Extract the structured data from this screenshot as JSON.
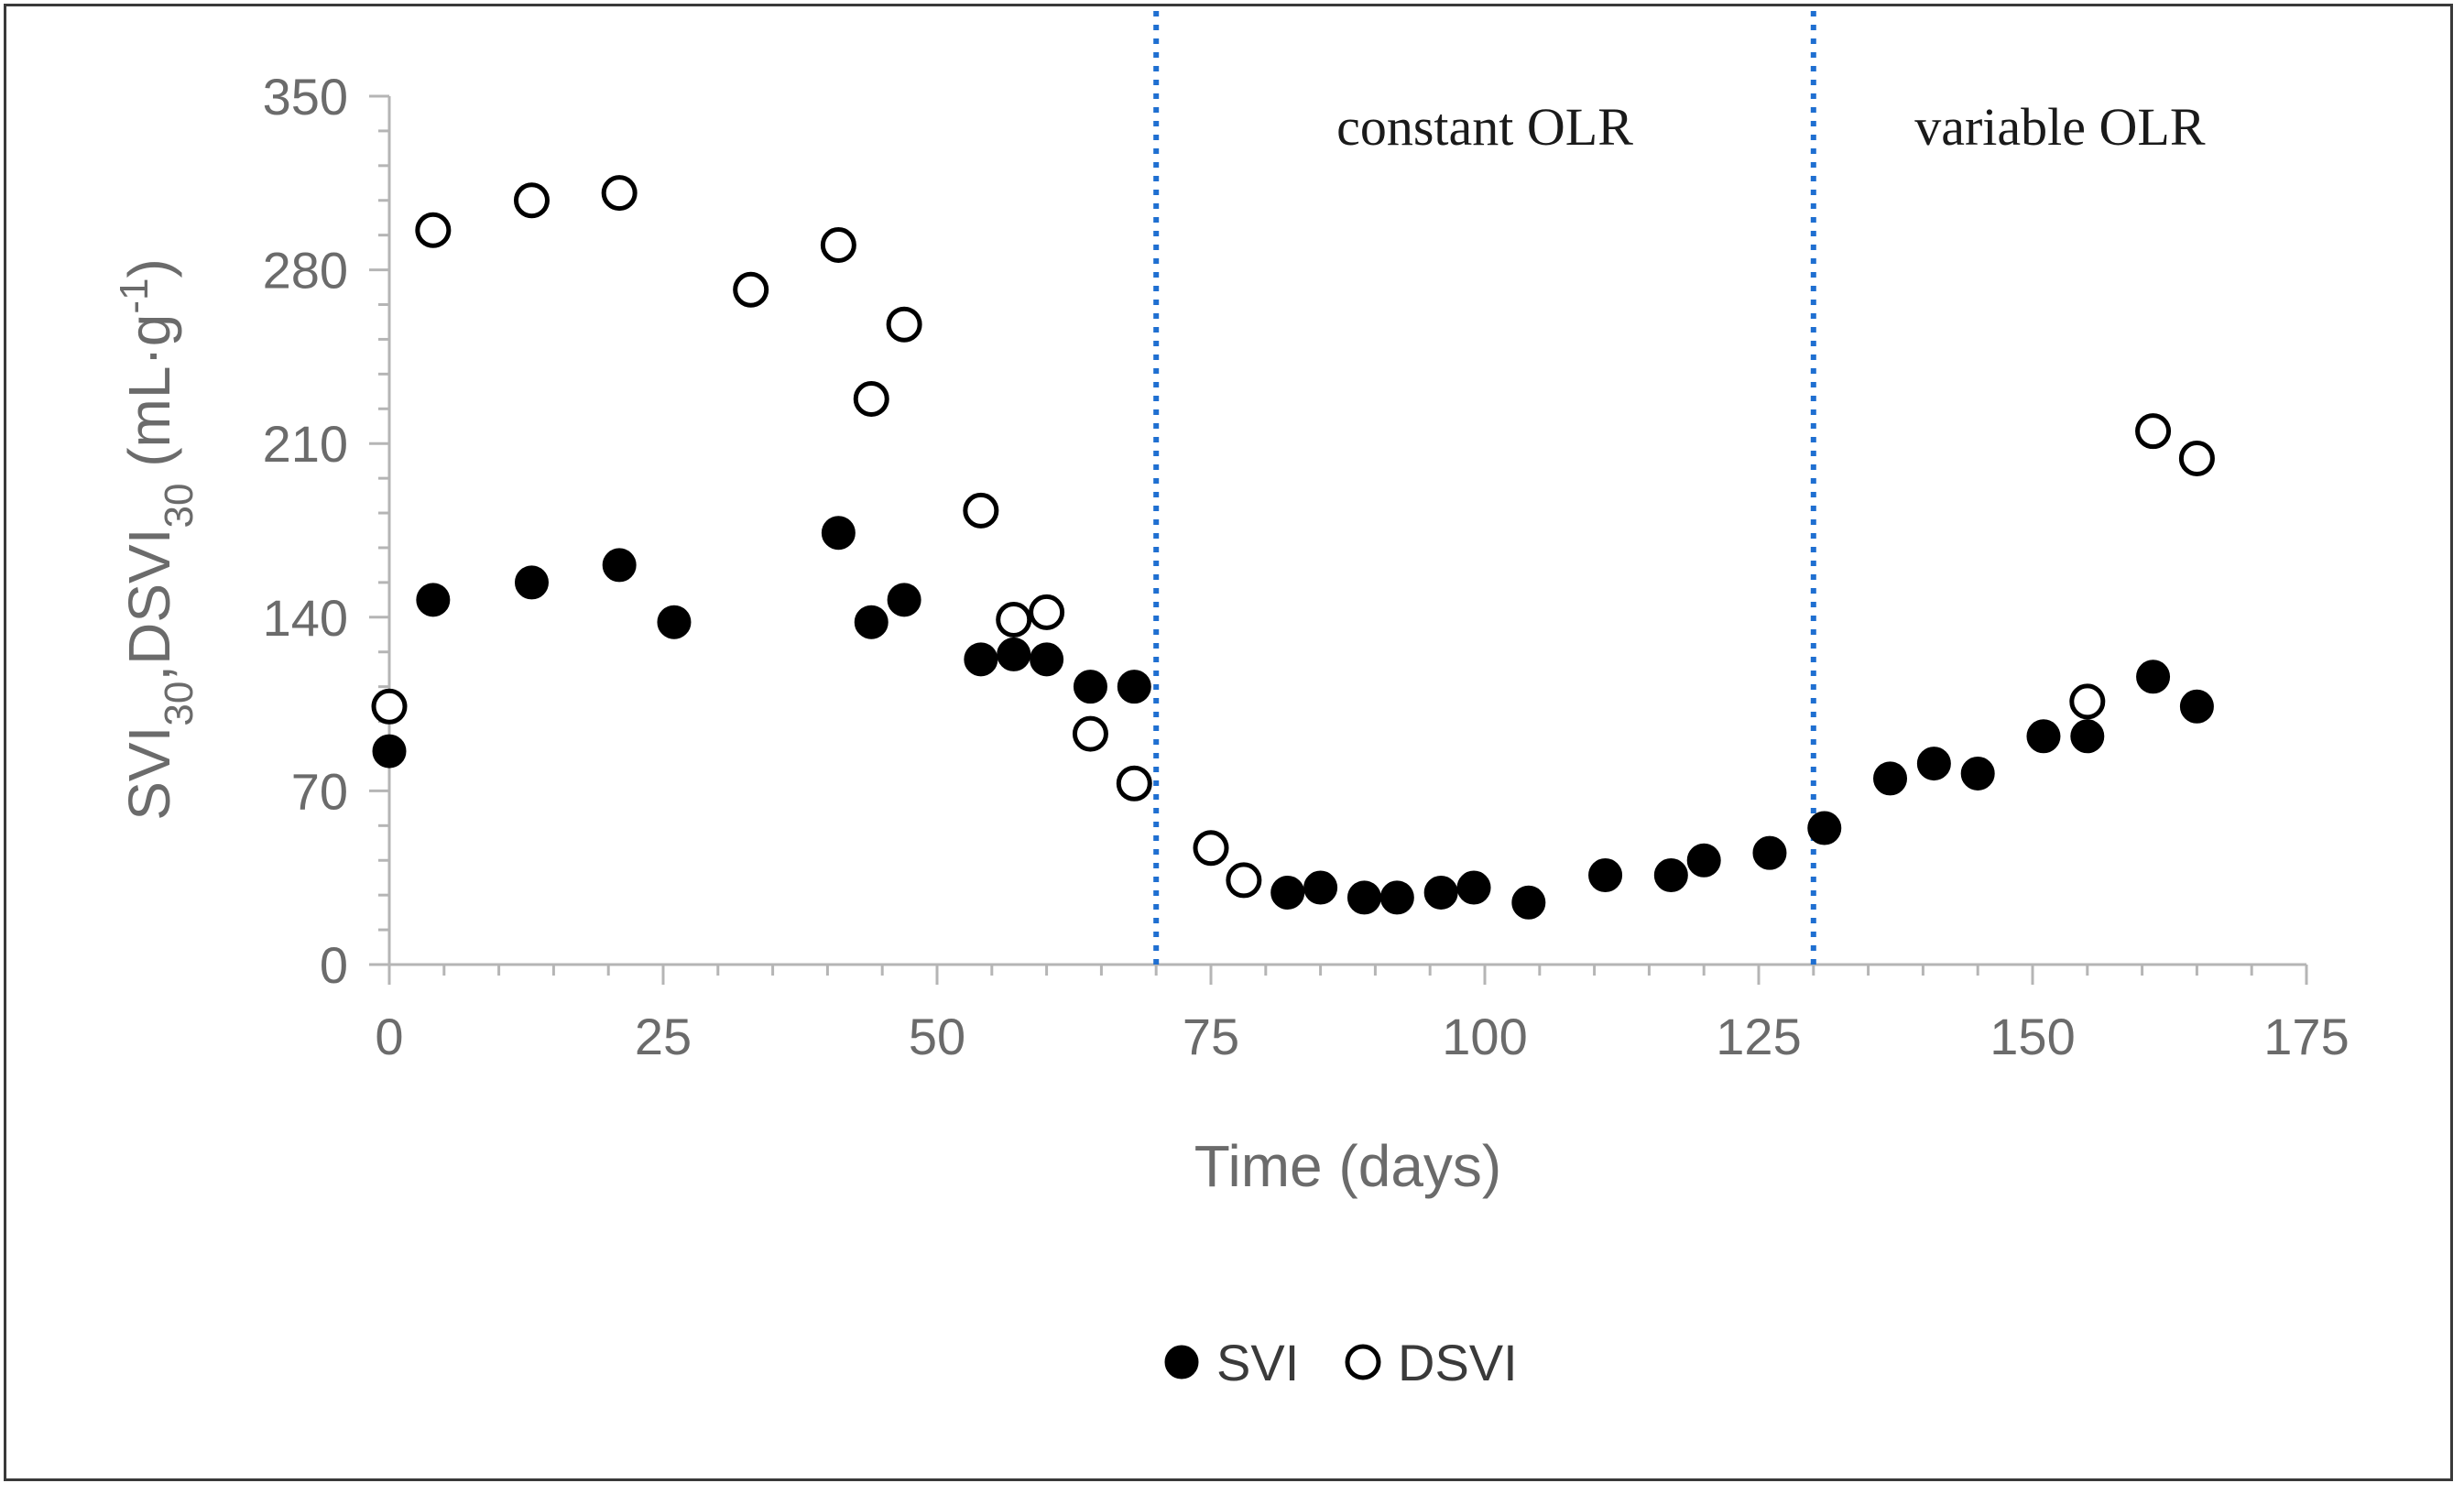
{
  "chart_data": {
    "type": "scatter",
    "title": "",
    "xlabel": "Time (days)",
    "ylabel": {
      "parts": [
        {
          "text": "SVI",
          "sub": false,
          "sup": false
        },
        {
          "text": "30",
          "sub": true,
          "sup": false
        },
        {
          "text": ",DSVI",
          "sub": false,
          "sup": false
        },
        {
          "text": "30",
          "sub": true,
          "sup": false
        },
        {
          "text": " (mL·g",
          "sub": false,
          "sup": false
        },
        {
          "text": "-1",
          "sub": false,
          "sup": true
        },
        {
          "text": ")",
          "sub": false,
          "sup": false
        }
      ]
    },
    "xlim": [
      0,
      175
    ],
    "ylim": [
      0,
      350
    ],
    "xticks": [
      0,
      25,
      50,
      75,
      100,
      125,
      150,
      175
    ],
    "yticks": [
      0,
      70,
      140,
      210,
      280,
      350
    ],
    "grid": false,
    "legend_position": "bottom-center",
    "vertical_lines": [
      70,
      130
    ],
    "annotations": [
      "constant OLR",
      "variable OLR"
    ],
    "series": [
      {
        "name": "SVI",
        "marker": "filled-circle",
        "color": "#000000",
        "points": [
          [
            0,
            86
          ],
          [
            4,
            147
          ],
          [
            13,
            154
          ],
          [
            21,
            161
          ],
          [
            26,
            138
          ],
          [
            41,
            174
          ],
          [
            44,
            138
          ],
          [
            47,
            147
          ],
          [
            54,
            123
          ],
          [
            57,
            125
          ],
          [
            60,
            123
          ],
          [
            64,
            112
          ],
          [
            68,
            112
          ],
          [
            82,
            29
          ],
          [
            85,
            31
          ],
          [
            89,
            27
          ],
          [
            92,
            27
          ],
          [
            96,
            29
          ],
          [
            99,
            31
          ],
          [
            104,
            25
          ],
          [
            111,
            36
          ],
          [
            117,
            36
          ],
          [
            120,
            42
          ],
          [
            126,
            45
          ],
          [
            131,
            55
          ],
          [
            137,
            75
          ],
          [
            141,
            81
          ],
          [
            145,
            77
          ],
          [
            151,
            92
          ],
          [
            155,
            92
          ],
          [
            161,
            116
          ],
          [
            165,
            104
          ]
        ]
      },
      {
        "name": "DSVI",
        "marker": "open-circle",
        "color": "#000000",
        "points": [
          [
            0,
            104
          ],
          [
            4,
            296
          ],
          [
            13,
            308
          ],
          [
            21,
            311
          ],
          [
            33,
            272
          ],
          [
            41,
            290
          ],
          [
            44,
            228
          ],
          [
            47,
            258
          ],
          [
            54,
            183
          ],
          [
            57,
            139
          ],
          [
            60,
            142
          ],
          [
            64,
            93
          ],
          [
            68,
            73
          ],
          [
            75,
            47
          ],
          [
            78,
            34
          ],
          [
            155,
            106
          ],
          [
            161,
            215
          ],
          [
            165,
            204
          ]
        ]
      }
    ]
  }
}
